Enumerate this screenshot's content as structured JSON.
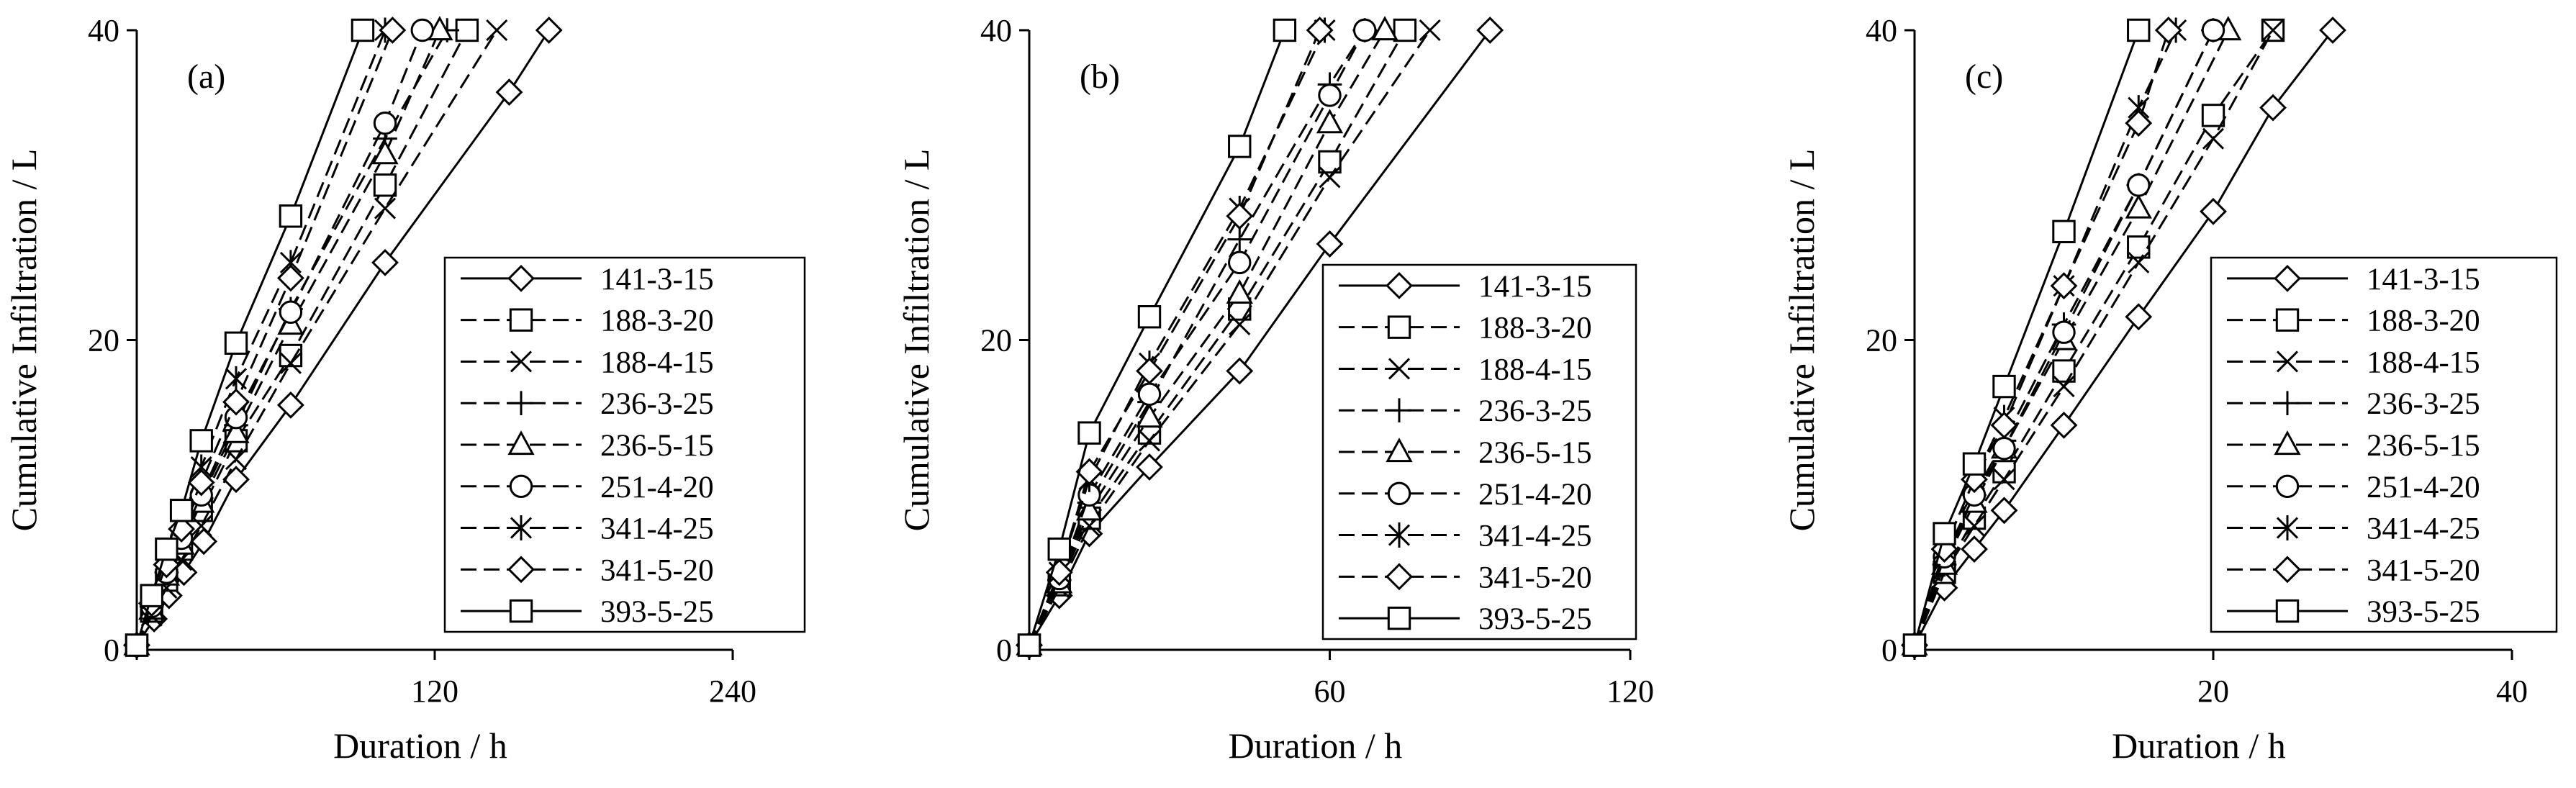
{
  "chart_data": [
    {
      "type": "line",
      "panel_label": "(a)",
      "xlabel": "Duration / h",
      "ylabel": "Cumulative Infiltration / L",
      "xlim": [
        0,
        240
      ],
      "ylim": [
        0,
        40
      ],
      "xticks": [
        0,
        120,
        240
      ],
      "yticks": [
        0,
        20,
        40
      ],
      "legend_position": "right",
      "series": [
        {
          "name": "141-3-15",
          "marker": "diamond",
          "dash": "solid",
          "x": [
            0,
            7,
            13,
            19,
            27,
            40,
            62,
            100,
            150,
            166
          ],
          "y": [
            0.3,
            2,
            3.5,
            5,
            7,
            11,
            15.8,
            25,
            36,
            40
          ]
        },
        {
          "name": "188-3-20",
          "marker": "square",
          "dash": "dashed",
          "x": [
            0,
            6,
            12,
            18,
            26,
            40,
            62,
            100,
            133
          ],
          "y": [
            0.3,
            2.5,
            4.5,
            6.5,
            9,
            13.5,
            19,
            30,
            40
          ]
        },
        {
          "name": "188-4-15",
          "marker": "x",
          "dash": "dashed",
          "x": [
            0,
            6,
            12,
            18,
            26,
            40,
            62,
            100,
            145
          ],
          "y": [
            0.3,
            2.2,
            4,
            5.8,
            8,
            12.3,
            18.5,
            28.5,
            40
          ]
        },
        {
          "name": "236-3-25",
          "marker": "plus",
          "dash": "dashed",
          "x": [
            0,
            6,
            12,
            18,
            26,
            40,
            62,
            100,
            125
          ],
          "y": [
            0.3,
            2.8,
            5,
            7,
            9.8,
            14.5,
            22,
            33,
            40
          ]
        },
        {
          "name": "236-5-15",
          "marker": "triangle",
          "dash": "dashed",
          "x": [
            0,
            6,
            12,
            18,
            26,
            40,
            62,
            100,
            122
          ],
          "y": [
            0.3,
            2.6,
            4.8,
            6.8,
            9.5,
            14,
            21,
            32,
            40
          ]
        },
        {
          "name": "251-4-20",
          "marker": "circle",
          "dash": "dashed",
          "x": [
            0,
            6,
            12,
            18,
            26,
            40,
            62,
            100,
            115
          ],
          "y": [
            0.3,
            2.8,
            5,
            7.2,
            10,
            15,
            21.8,
            34,
            40
          ]
        },
        {
          "name": "341-4-25",
          "marker": "asterisk",
          "dash": "dashed",
          "x": [
            0,
            6,
            12,
            18,
            26,
            40,
            62,
            100
          ],
          "y": [
            0.3,
            3.3,
            6,
            8.5,
            11.8,
            17.5,
            25,
            40
          ]
        },
        {
          "name": "341-5-20",
          "marker": "diamond",
          "dash": "dashed",
          "x": [
            0,
            6,
            12,
            18,
            26,
            40,
            62,
            103
          ],
          "y": [
            0.3,
            3,
            5.5,
            7.8,
            10.8,
            16,
            24,
            40
          ]
        },
        {
          "name": "393-5-25",
          "marker": "square",
          "dash": "solid",
          "x": [
            0,
            6,
            12,
            18,
            26,
            40,
            62,
            91
          ],
          "y": [
            0.3,
            3.5,
            6.5,
            9,
            13.5,
            19.8,
            28,
            40
          ]
        }
      ]
    },
    {
      "type": "line",
      "panel_label": "(b)",
      "xlabel": "Duration / h",
      "ylabel": "Cumulative Infiltration / L",
      "xlim": [
        0,
        120
      ],
      "ylim": [
        0,
        40
      ],
      "xticks": [
        0,
        60,
        120
      ],
      "yticks": [
        0,
        20,
        40
      ],
      "legend_position": "right",
      "series": [
        {
          "name": "141-3-15",
          "marker": "diamond",
          "dash": "solid",
          "x": [
            0,
            6,
            12,
            24,
            42,
            60,
            92
          ],
          "y": [
            0.3,
            3.5,
            7.5,
            11.8,
            18,
            26.2,
            40
          ]
        },
        {
          "name": "188-3-20",
          "marker": "square",
          "dash": "dashed",
          "x": [
            0,
            6,
            12,
            24,
            42,
            60,
            75
          ],
          "y": [
            0.3,
            4.2,
            8.5,
            14,
            22,
            31.5,
            40
          ]
        },
        {
          "name": "188-4-15",
          "marker": "x",
          "dash": "dashed",
          "x": [
            0,
            6,
            12,
            24,
            42,
            60,
            80
          ],
          "y": [
            0.3,
            4,
            8,
            13.5,
            21,
            30.5,
            40
          ]
        },
        {
          "name": "236-3-25",
          "marker": "plus",
          "dash": "dashed",
          "x": [
            0,
            6,
            12,
            24,
            42,
            60,
            67
          ],
          "y": [
            0.3,
            4.5,
            9.5,
            16,
            26.5,
            36.5,
            40
          ]
        },
        {
          "name": "236-5-15",
          "marker": "triangle",
          "dash": "dashed",
          "x": [
            0,
            6,
            12,
            24,
            42,
            60,
            71
          ],
          "y": [
            0.3,
            4.3,
            9,
            15,
            23,
            34,
            40
          ]
        },
        {
          "name": "251-4-20",
          "marker": "circle",
          "dash": "dashed",
          "x": [
            0,
            6,
            12,
            24,
            42,
            60,
            67
          ],
          "y": [
            0.3,
            4.6,
            10,
            16.5,
            25,
            35.8,
            40
          ]
        },
        {
          "name": "341-4-25",
          "marker": "asterisk",
          "dash": "dashed",
          "x": [
            0,
            6,
            12,
            24,
            42,
            59
          ],
          "y": [
            0.3,
            5,
            11,
            18.5,
            28.5,
            40
          ]
        },
        {
          "name": "341-5-20",
          "marker": "diamond",
          "dash": "dashed",
          "x": [
            0,
            6,
            12,
            24,
            42,
            58
          ],
          "y": [
            0.3,
            5,
            11.5,
            18,
            28,
            40
          ]
        },
        {
          "name": "393-5-25",
          "marker": "square",
          "dash": "solid",
          "x": [
            0,
            6,
            12,
            24,
            42,
            51
          ],
          "y": [
            0.3,
            6.5,
            14,
            21.5,
            32.5,
            40
          ]
        }
      ]
    },
    {
      "type": "line",
      "panel_label": "(c)",
      "xlabel": "Duration / h",
      "ylabel": "Cumulative Infiltration / L",
      "xlim": [
        0,
        40
      ],
      "ylim": [
        0,
        40
      ],
      "xticks": [
        0,
        20,
        40
      ],
      "yticks": [
        0,
        20,
        40
      ],
      "legend_position": "right",
      "series": [
        {
          "name": "141-3-15",
          "marker": "diamond",
          "dash": "solid",
          "x": [
            0,
            2,
            4,
            6,
            10,
            15,
            20,
            24,
            28
          ],
          "y": [
            0.3,
            4,
            6.5,
            9,
            14.5,
            21.5,
            28.3,
            35,
            40
          ]
        },
        {
          "name": "188-3-20",
          "marker": "square",
          "dash": "dashed",
          "x": [
            0,
            2,
            4,
            6,
            10,
            15,
            20,
            24
          ],
          "y": [
            0.3,
            5,
            8.5,
            11.5,
            18,
            26,
            34.5,
            40
          ]
        },
        {
          "name": "188-4-15",
          "marker": "x",
          "dash": "dashed",
          "x": [
            0,
            2,
            4,
            6,
            10,
            15,
            20,
            24
          ],
          "y": [
            0.3,
            5,
            8,
            11,
            17,
            25,
            33,
            40
          ]
        },
        {
          "name": "236-3-25",
          "marker": "plus",
          "dash": "dashed",
          "x": [
            0,
            2,
            4,
            6,
            10,
            15,
            20
          ],
          "y": [
            0.3,
            5.5,
            10,
            13.5,
            21,
            30,
            40
          ]
        },
        {
          "name": "236-5-15",
          "marker": "triangle",
          "dash": "dashed",
          "x": [
            0,
            2,
            4,
            6,
            10,
            15,
            21
          ],
          "y": [
            0.3,
            5.5,
            9.5,
            13,
            20,
            28.5,
            40
          ]
        },
        {
          "name": "251-4-20",
          "marker": "circle",
          "dash": "dashed",
          "x": [
            0,
            2,
            4,
            6,
            10,
            15,
            20
          ],
          "y": [
            0.3,
            6,
            10,
            13,
            20.5,
            30,
            40
          ]
        },
        {
          "name": "341-4-25",
          "marker": "asterisk",
          "dash": "dashed",
          "x": [
            0,
            2,
            4,
            6,
            10,
            15,
            17.5
          ],
          "y": [
            0.3,
            6.5,
            11,
            15,
            23.5,
            35,
            40
          ]
        },
        {
          "name": "341-5-20",
          "marker": "diamond",
          "dash": "dashed",
          "x": [
            0,
            2,
            4,
            6,
            10,
            15,
            17
          ],
          "y": [
            0.3,
            6.5,
            11,
            14.5,
            23.5,
            34,
            40
          ]
        },
        {
          "name": "393-5-25",
          "marker": "square",
          "dash": "solid",
          "x": [
            0,
            2,
            4,
            6,
            10,
            15
          ],
          "y": [
            0.3,
            7.5,
            12,
            17,
            27,
            40
          ]
        }
      ]
    }
  ]
}
